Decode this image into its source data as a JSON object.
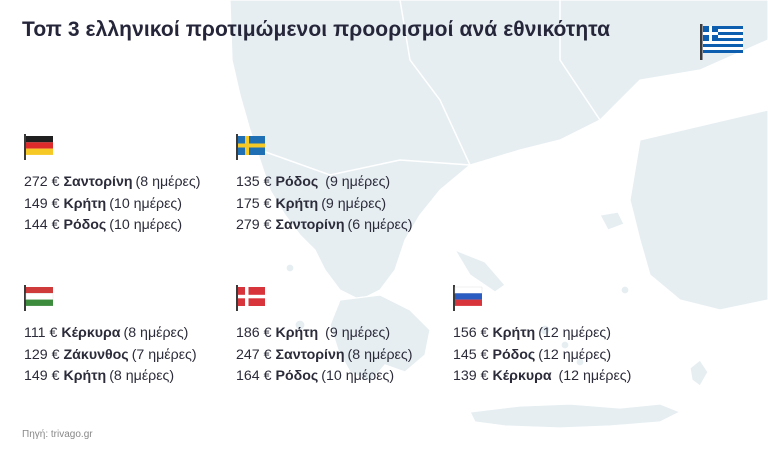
{
  "title": "Τοπ 3 ελληνικοί προτιμώμενοι προορισμοί ανά εθνικότητα",
  "source": "Πηγή: trivago.gr",
  "colors": {
    "map": "#e6eef2",
    "accent": "#0d5eaf"
  },
  "groups": [
    {
      "flag_icon": "germany-flag-icon",
      "rows": [
        {
          "price": "272 €",
          "dest": "Σαντορίνη",
          "days": "(8 ημέρες)"
        },
        {
          "price": "149 €",
          "dest": "Κρήτη",
          "days": "(10 ημέρες)"
        },
        {
          "price": "144 €",
          "dest": "Ρόδος",
          "days": "(10 ημέρες)"
        }
      ]
    },
    {
      "flag_icon": "sweden-flag-icon",
      "rows": [
        {
          "price": "135 €",
          "dest": "Ρόδος",
          "days": " (9 ημέρες)"
        },
        {
          "price": "175 €",
          "dest": "Κρήτη",
          "days": "(9 ημέρες)"
        },
        {
          "price": "279 €",
          "dest": "Σαντορίνη",
          "days": "(6 ημέρες)"
        }
      ]
    },
    {
      "flag_icon": "hungary-flag-icon",
      "rows": [
        {
          "price": "111 €",
          "dest": "Κέρκυρα",
          "days": "(8 ημέρες)"
        },
        {
          "price": "129 €",
          "dest": "Ζάκυνθος",
          "days": "(7 ημέρες)"
        },
        {
          "price": "149 €",
          "dest": "Κρήτη",
          "days": "(8 ημέρες)"
        }
      ]
    },
    {
      "flag_icon": "denmark-flag-icon",
      "rows": [
        {
          "price": "186 €",
          "dest": "Κρήτη",
          "days": " (9 ημέρες)"
        },
        {
          "price": "247 €",
          "dest": "Σαντορίνη",
          "days": "(8 ημέρες)"
        },
        {
          "price": "164 €",
          "dest": "Ρόδος",
          "days": "(10 ημέρες)"
        }
      ]
    },
    {
      "flag_icon": "russia-flag-icon",
      "rows": [
        {
          "price": "156 €",
          "dest": "Κρήτη",
          "days": "(12 ημέρες)"
        },
        {
          "price": "145 €",
          "dest": "Ρόδος",
          "days": "(12 ημέρες)"
        },
        {
          "price": "139 €",
          "dest": "Κέρκυρα",
          "days": " (12 ημέρες)"
        }
      ]
    }
  ]
}
